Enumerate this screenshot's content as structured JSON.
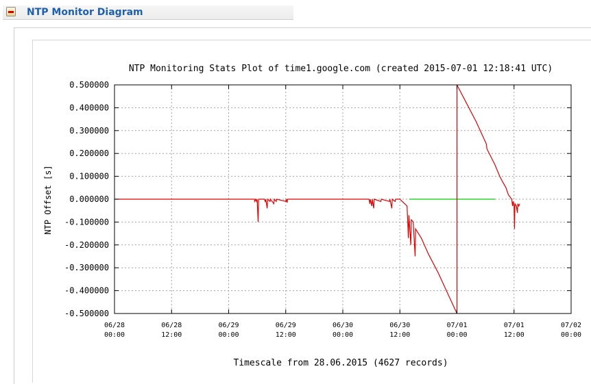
{
  "panel": {
    "title": "NTP Monitor Diagram",
    "collapse_icon": "minus-icon"
  },
  "colors": {
    "offset_series": "#dd0000",
    "zero_series": "#00cc00",
    "grid": "#a0a0a0",
    "title_blue": "#1e5fae"
  },
  "chart_data": {
    "type": "line",
    "title": "NTP Monitoring Stats Plot of time1.google.com (created 2015-07-01 12:18:41 UTC)",
    "xlabel": "Timescale from 28.06.2015 (4627 records)",
    "ylabel": "NTP Offset [s]",
    "ylim": [
      -0.5,
      0.5
    ],
    "yticks": [
      0.5,
      0.4,
      0.3,
      0.2,
      0.1,
      0.0,
      -0.1,
      -0.2,
      -0.3,
      -0.4,
      -0.5
    ],
    "ytick_labels": [
      "0.500000",
      "0.400000",
      "0.300000",
      "0.200000",
      "0.100000",
      "0.000000",
      "-0.100000",
      "-0.200000",
      "-0.300000",
      "-0.400000",
      "-0.500000"
    ],
    "xlim_hours": [
      0,
      96
    ],
    "xticks": [
      {
        "hour": 0,
        "date": "06/28",
        "time": "00:00"
      },
      {
        "hour": 12,
        "date": "06/28",
        "time": "12:00"
      },
      {
        "hour": 24,
        "date": "06/29",
        "time": "00:00"
      },
      {
        "hour": 36,
        "date": "06/29",
        "time": "12:00"
      },
      {
        "hour": 48,
        "date": "06/30",
        "time": "00:00"
      },
      {
        "hour": 60,
        "date": "06/30",
        "time": "12:00"
      },
      {
        "hour": 72,
        "date": "07/01",
        "time": "00:00"
      },
      {
        "hour": 84,
        "date": "07/01",
        "time": "12:00"
      },
      {
        "hour": 96,
        "date": "07/02",
        "time": "00:00"
      }
    ],
    "grid": true,
    "series": [
      {
        "color": "#00cc00",
        "points": [
          [
            62,
            0
          ],
          [
            80,
            0
          ]
        ]
      },
      {
        "color": "#dd0000",
        "points": [
          [
            0,
            0
          ],
          [
            29.4,
            0
          ],
          [
            29.5,
            -0.01
          ],
          [
            29.7,
            0
          ],
          [
            29.9,
            -0.01
          ],
          [
            30.0,
            0
          ],
          [
            30.2,
            -0.1
          ],
          [
            30.3,
            0
          ],
          [
            31.5,
            0
          ],
          [
            31.7,
            -0.01
          ],
          [
            31.8,
            0
          ],
          [
            32.1,
            -0.04
          ],
          [
            32.2,
            0
          ],
          [
            32.7,
            -0.01
          ],
          [
            32.8,
            0
          ],
          [
            33.5,
            -0.02
          ],
          [
            33.6,
            0
          ],
          [
            34.0,
            -0.01
          ],
          [
            34.1,
            0
          ],
          [
            36.0,
            -0.01
          ],
          [
            36.1,
            0
          ],
          [
            36.3,
            -0.015
          ],
          [
            36.4,
            0
          ],
          [
            53.5,
            0
          ],
          [
            53.7,
            -0.02
          ],
          [
            53.8,
            0
          ],
          [
            54.1,
            -0.03
          ],
          [
            54.2,
            0
          ],
          [
            54.5,
            -0.04
          ],
          [
            54.6,
            0
          ],
          [
            56.0,
            -0.01
          ],
          [
            56.1,
            0
          ],
          [
            57.8,
            -0.01
          ],
          [
            57.9,
            0
          ],
          [
            58.3,
            -0.04
          ],
          [
            58.4,
            0
          ],
          [
            59.0,
            -0.01
          ],
          [
            59.1,
            0
          ],
          [
            60.0,
            0
          ],
          [
            60.5,
            -0.01
          ],
          [
            61.5,
            -0.03
          ],
          [
            61.8,
            -0.17
          ],
          [
            61.9,
            -0.07
          ],
          [
            62.3,
            -0.2
          ],
          [
            62.4,
            -0.09
          ],
          [
            62.8,
            -0.1
          ],
          [
            63.2,
            -0.25
          ],
          [
            63.3,
            -0.13
          ],
          [
            63.6,
            -0.14
          ],
          [
            64.5,
            -0.17
          ],
          [
            66.0,
            -0.24
          ],
          [
            68.0,
            -0.32
          ],
          [
            70.0,
            -0.41
          ],
          [
            72.0,
            -0.5
          ],
          [
            72.0,
            0.5
          ],
          [
            74.0,
            0.42
          ],
          [
            76.0,
            0.34
          ],
          [
            78.0,
            0.25
          ],
          [
            78.2,
            0.24
          ],
          [
            78.3,
            0.22
          ],
          [
            80.0,
            0.15
          ],
          [
            81.0,
            0.1
          ],
          [
            81.5,
            0.08
          ],
          [
            82.3,
            0.05
          ],
          [
            82.8,
            0.02
          ],
          [
            83.5,
            0.0
          ],
          [
            83.7,
            -0.03
          ],
          [
            83.8,
            -0.01
          ],
          [
            84.0,
            -0.03
          ],
          [
            84.1,
            -0.13
          ],
          [
            84.2,
            -0.02
          ],
          [
            84.5,
            -0.03
          ],
          [
            84.7,
            -0.06
          ],
          [
            84.8,
            -0.02
          ],
          [
            85.0,
            -0.03
          ],
          [
            85.2,
            -0.02
          ]
        ]
      }
    ]
  }
}
